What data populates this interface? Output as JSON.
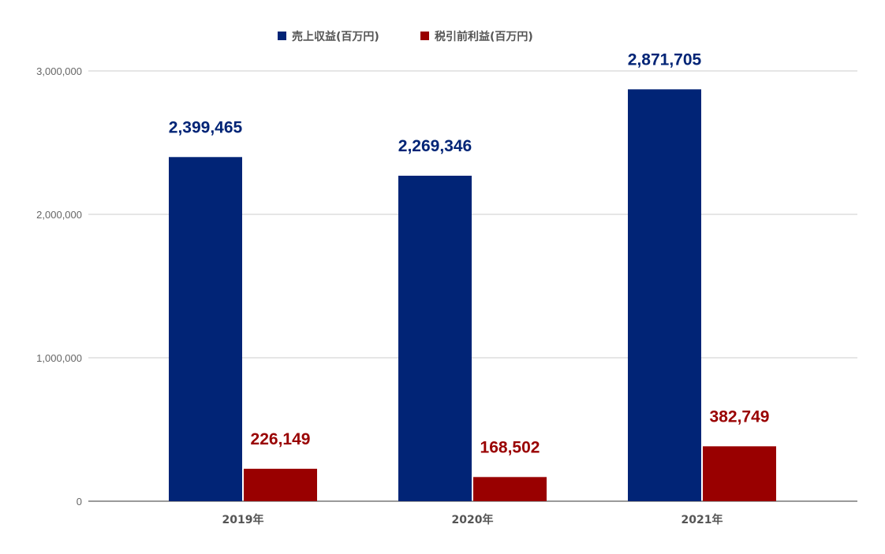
{
  "chart_data": {
    "type": "bar",
    "categories": [
      "2019年",
      "2020年",
      "2021年"
    ],
    "series": [
      {
        "name": "売上収益(百万円)",
        "color": "#012476",
        "values": [
          2399465,
          2269346,
          2871705
        ],
        "labels": [
          "2,399,465",
          "2,269,346",
          "2,871,705"
        ]
      },
      {
        "name": "税引前利益(百万円)",
        "color": "#990000",
        "values": [
          226149,
          168502,
          382749
        ],
        "labels": [
          "226,149",
          "168,502",
          "382,749"
        ]
      }
    ],
    "ylim": [
      0,
      3000000
    ],
    "yticks": [
      0,
      1000000,
      2000000,
      3000000
    ],
    "ytick_labels": [
      "0",
      "1,000,000",
      "2,000,000",
      "3,000,000"
    ],
    "grid": true,
    "legend_position": "top-center"
  }
}
